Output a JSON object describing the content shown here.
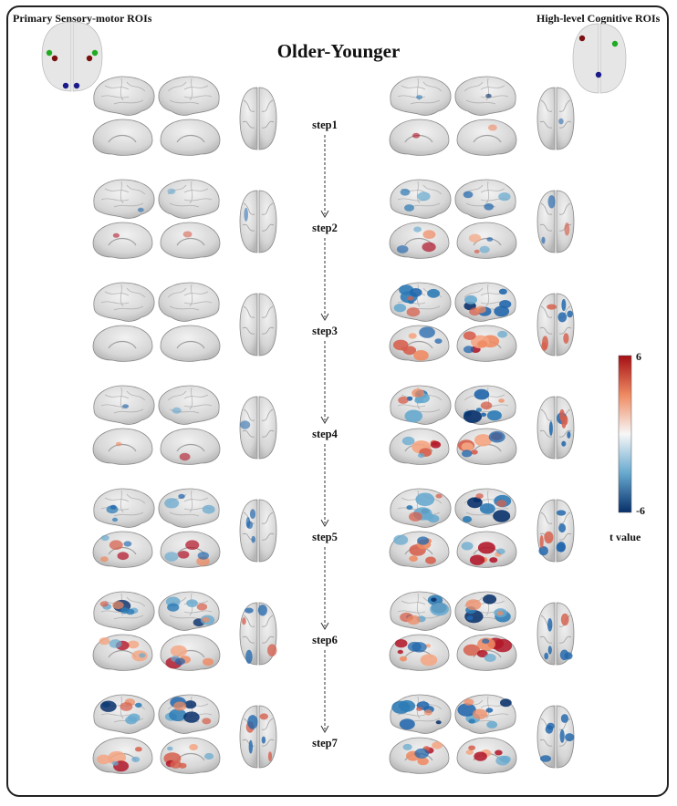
{
  "header": {
    "left_label": "Primary Sensory-motor ROIs",
    "right_label": "High-level Cognitive ROIs",
    "title": "Older-Younger"
  },
  "steps": [
    {
      "label": "step1",
      "left_intensity": 0.05,
      "right_intensity": 0.15
    },
    {
      "label": "step2",
      "left_intensity": 0.1,
      "right_intensity": 0.4
    },
    {
      "label": "step3",
      "left_intensity": 0.05,
      "right_intensity": 0.85
    },
    {
      "label": "step4",
      "left_intensity": 0.15,
      "right_intensity": 0.9
    },
    {
      "label": "step5",
      "left_intensity": 0.45,
      "right_intensity": 0.85
    },
    {
      "label": "step6",
      "left_intensity": 0.65,
      "right_intensity": 0.8
    },
    {
      "label": "step7",
      "left_intensity": 0.75,
      "right_intensity": 0.8
    }
  ],
  "colorbar": {
    "max_label": "6",
    "min_label": "-6",
    "title": "t value",
    "high_color": "#a50f15",
    "low_color": "#08306b"
  },
  "roi_left": [
    {
      "color": "#7a1010"
    },
    {
      "color": "#7a1010"
    },
    {
      "color": "#22aa22"
    },
    {
      "color": "#22aa22"
    },
    {
      "color": "#1a1a8a"
    },
    {
      "color": "#1a1a8a"
    }
  ],
  "roi_right": [
    {
      "color": "#7a1010"
    },
    {
      "color": "#22aa22"
    },
    {
      "color": "#1a1a8a"
    }
  ]
}
